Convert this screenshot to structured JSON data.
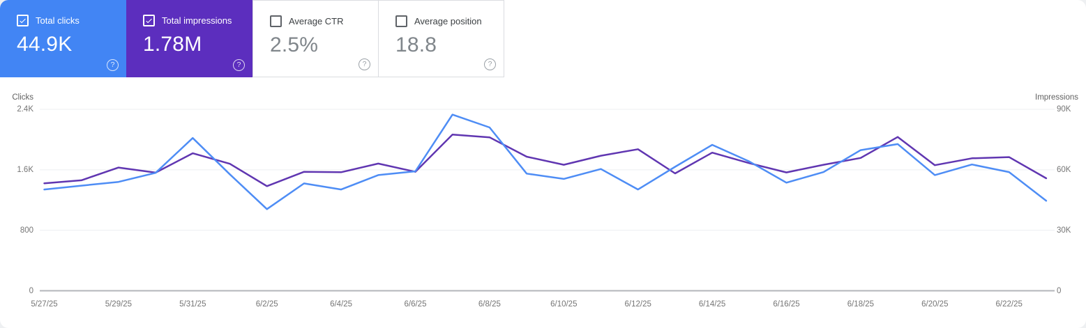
{
  "metrics": [
    {
      "id": "total-clicks",
      "label": "Total clicks",
      "value": "44.9K",
      "checked": true,
      "color": "#4285F4"
    },
    {
      "id": "total-impressions",
      "label": "Total impressions",
      "value": "1.78M",
      "checked": true,
      "color": "#5C2EBE"
    },
    {
      "id": "average-ctr",
      "label": "Average CTR",
      "value": "2.5%",
      "checked": false,
      "color": ""
    },
    {
      "id": "average-position",
      "label": "Average position",
      "value": "18.8",
      "checked": false,
      "color": ""
    }
  ],
  "help_icon_glyph": "?",
  "chart_data": {
    "type": "line",
    "x": [
      "5/27/25",
      "5/28/25",
      "5/29/25",
      "5/30/25",
      "5/31/25",
      "6/1/25",
      "6/2/25",
      "6/3/25",
      "6/4/25",
      "6/5/25",
      "6/6/25",
      "6/7/25",
      "6/8/25",
      "6/9/25",
      "6/10/25",
      "6/11/25",
      "6/12/25",
      "6/13/25",
      "6/14/25",
      "6/15/25",
      "6/16/25",
      "6/17/25",
      "6/18/25",
      "6/19/25",
      "6/20/25",
      "6/21/25",
      "6/22/25",
      "6/23/25"
    ],
    "x_label_step": 2,
    "left_axis": {
      "title": "Clicks",
      "max": 2400,
      "ticks": [
        {
          "label": "2.4K",
          "value": 2400
        },
        {
          "label": "1.6K",
          "value": 1600
        },
        {
          "label": "800",
          "value": 800
        },
        {
          "label": "0",
          "value": 0
        }
      ]
    },
    "right_axis": {
      "title": "Impressions",
      "max": 90000,
      "ticks": [
        {
          "label": "90K",
          "value": 90000
        },
        {
          "label": "60K",
          "value": 60000
        },
        {
          "label": "30K",
          "value": 30000
        },
        {
          "label": "0",
          "value": 0
        }
      ]
    },
    "grid": true,
    "legend": "none",
    "series": [
      {
        "name": "Total impressions",
        "axis": "right",
        "color": "#6036B1",
        "values": [
          53300,
          54800,
          61100,
          58600,
          68200,
          63000,
          51900,
          59000,
          58800,
          63100,
          59000,
          77500,
          76100,
          66500,
          62500,
          67000,
          70200,
          58200,
          68500,
          63300,
          58700,
          62500,
          65900,
          76300,
          62300,
          65700,
          66300,
          55800
        ]
      },
      {
        "name": "Total clicks",
        "axis": "left",
        "color": "#4E8DF5",
        "values": [
          1340,
          1390,
          1440,
          1560,
          2020,
          1540,
          1080,
          1420,
          1340,
          1530,
          1580,
          2330,
          2160,
          1550,
          1480,
          1610,
          1340,
          1640,
          1930,
          1710,
          1430,
          1570,
          1860,
          1940,
          1530,
          1670,
          1570,
          1190
        ]
      }
    ]
  }
}
